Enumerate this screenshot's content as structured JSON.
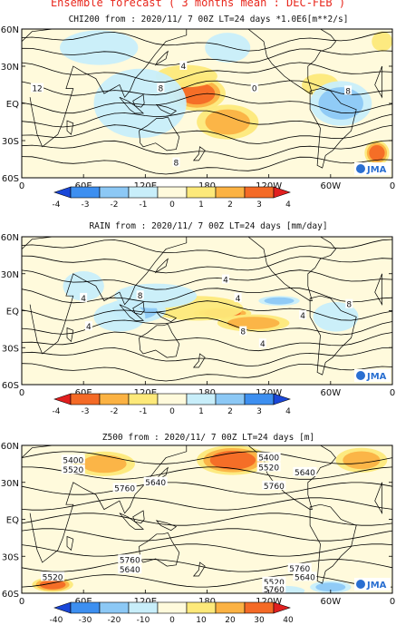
{
  "page_title": "Ensemble forecast ( 3 months mean : DEC-FEB )",
  "logo_text": "JMA",
  "chart_data": [
    {
      "type": "heatmap",
      "title": "CHI200  from : 2020/11/ 7 00Z LT=24 days  *1.0E6[m**2/s]",
      "lat_ticks": [
        "60N",
        "30N",
        "EQ",
        "30S",
        "60S"
      ],
      "lon_ticks": [
        "0",
        "60E",
        "120E",
        "180",
        "120W",
        "60W",
        "0"
      ],
      "colorbar": {
        "labels": [
          "-4",
          "-3",
          "-2",
          "-1",
          "0",
          "1",
          "2",
          "3",
          "4"
        ],
        "colors": [
          "#1a47d8",
          "#3d8ff0",
          "#8cc8f5",
          "#c8eefa",
          "#fffadc",
          "#fde97a",
          "#fbb243",
          "#f46a26",
          "#e11f1f"
        ]
      },
      "anomalies": [
        {
          "lon": 170,
          "lat": 8,
          "value": 3,
          "rx": 28,
          "ry": 14
        },
        {
          "lon": 200,
          "lat": -15,
          "value": 2,
          "rx": 30,
          "ry": 14
        },
        {
          "lon": 160,
          "lat": 22,
          "value": 1,
          "rx": 30,
          "ry": 9
        },
        {
          "lon": 290,
          "lat": 15,
          "value": 1,
          "rx": 18,
          "ry": 9
        },
        {
          "lon": 345,
          "lat": -40,
          "value": 3,
          "rx": 12,
          "ry": 10
        },
        {
          "lon": 350,
          "lat": 50,
          "value": 1,
          "rx": 10,
          "ry": 8
        },
        {
          "lon": 115,
          "lat": 0,
          "value": -1,
          "rx": 45,
          "ry": 28
        },
        {
          "lon": 75,
          "lat": 45,
          "value": -1,
          "rx": 38,
          "ry": 14
        },
        {
          "lon": 310,
          "lat": 0,
          "value": -2,
          "rx": 30,
          "ry": 18
        },
        {
          "lon": 200,
          "lat": 45,
          "value": -1,
          "rx": 22,
          "ry": 12
        }
      ],
      "contour_labels": [
        {
          "text": "12",
          "lon": 15,
          "lat": 12
        },
        {
          "text": "4",
          "lon": 157,
          "lat": 30
        },
        {
          "text": "8",
          "lon": 135,
          "lat": 12
        },
        {
          "text": "0",
          "lon": 226,
          "lat": 12
        },
        {
          "text": "8",
          "lon": 317,
          "lat": 10
        },
        {
          "text": "8",
          "lon": 150,
          "lat": -48
        }
      ]
    },
    {
      "type": "heatmap",
      "title": "RAIN   from : 2020/11/ 7 00Z LT=24 days   [mm/day]",
      "lat_ticks": [
        "60N",
        "30N",
        "EQ",
        "30S",
        "60S"
      ],
      "lon_ticks": [
        "0",
        "60E",
        "120E",
        "180",
        "120W",
        "60W",
        "0"
      ],
      "colorbar": {
        "labels": [
          "-4",
          "-3",
          "-2",
          "-1",
          "0",
          "1",
          "2",
          "3",
          "4"
        ],
        "colors": [
          "#e11f1f",
          "#f46a26",
          "#fbb243",
          "#fde97a",
          "#fffadc",
          "#c8eefa",
          "#8cc8f5",
          "#3d8ff0",
          "#1a47d8"
        ]
      },
      "anomalies": [
        {
          "lon": 195,
          "lat": -2,
          "value": -3,
          "rx": 28,
          "ry": 5
        },
        {
          "lon": 225,
          "lat": -10,
          "value": -2,
          "rx": 35,
          "ry": 7
        },
        {
          "lon": 170,
          "lat": 2,
          "value": -1,
          "rx": 45,
          "ry": 10
        },
        {
          "lon": 250,
          "lat": 8,
          "value": 2,
          "rx": 20,
          "ry": 4
        },
        {
          "lon": 110,
          "lat": 0,
          "value": 2,
          "rx": 30,
          "ry": 10
        },
        {
          "lon": 130,
          "lat": 12,
          "value": 1,
          "rx": 40,
          "ry": 10
        },
        {
          "lon": 95,
          "lat": -5,
          "value": 1,
          "rx": 25,
          "ry": 12
        },
        {
          "lon": 305,
          "lat": -5,
          "value": 1,
          "rx": 22,
          "ry": 12
        },
        {
          "lon": 60,
          "lat": 20,
          "value": 1,
          "rx": 20,
          "ry": 12
        }
      ],
      "contour_labels": [
        {
          "text": "4",
          "lon": 60,
          "lat": 10
        },
        {
          "text": "4",
          "lon": 65,
          "lat": -13
        },
        {
          "text": "4",
          "lon": 198,
          "lat": 25
        },
        {
          "text": "4",
          "lon": 210,
          "lat": 10
        },
        {
          "text": "4",
          "lon": 273,
          "lat": -4
        },
        {
          "text": "8",
          "lon": 215,
          "lat": -17
        },
        {
          "text": "4",
          "lon": 234,
          "lat": -27
        },
        {
          "text": "8",
          "lon": 115,
          "lat": 12
        },
        {
          "text": "8",
          "lon": 318,
          "lat": 5
        }
      ]
    },
    {
      "type": "heatmap",
      "title": "Z500   from : 2020/11/ 7 00Z LT=24 days   [m]",
      "lat_ticks": [
        "60N",
        "30N",
        "EQ",
        "30S",
        "60S"
      ],
      "lon_ticks": [
        "0",
        "60E",
        "120E",
        "180",
        "120W",
        "60W",
        "0"
      ],
      "colorbar": {
        "labels": [
          "-40",
          "-30",
          "-20",
          "-10",
          "0",
          "10",
          "20",
          "30",
          "40"
        ],
        "colors": [
          "#1a47d8",
          "#3d8ff0",
          "#8cc8f5",
          "#c8eefa",
          "#fffadc",
          "#fde97a",
          "#fbb243",
          "#f46a26",
          "#e11f1f"
        ]
      },
      "anomalies": [
        {
          "lon": 205,
          "lat": 48,
          "value": 3,
          "rx": 35,
          "ry": 12
        },
        {
          "lon": 80,
          "lat": 45,
          "value": 2,
          "rx": 30,
          "ry": 10
        },
        {
          "lon": 330,
          "lat": 48,
          "value": 2,
          "rx": 25,
          "ry": 10
        },
        {
          "lon": 30,
          "lat": -53,
          "value": 3,
          "rx": 20,
          "ry": 6
        },
        {
          "lon": 300,
          "lat": -55,
          "value": -2,
          "rx": 20,
          "ry": 5
        },
        {
          "lon": 255,
          "lat": -58,
          "value": -1,
          "rx": 20,
          "ry": 4
        }
      ],
      "contour_labels": [
        {
          "text": "5400",
          "lon": 50,
          "lat": 48
        },
        {
          "text": "5520",
          "lon": 50,
          "lat": 40
        },
        {
          "text": "5640",
          "lon": 130,
          "lat": 30
        },
        {
          "text": "5760",
          "lon": 100,
          "lat": 25
        },
        {
          "text": "5400",
          "lon": 240,
          "lat": 50
        },
        {
          "text": "5520",
          "lon": 240,
          "lat": 42
        },
        {
          "text": "5640",
          "lon": 275,
          "lat": 38
        },
        {
          "text": "5760",
          "lon": 245,
          "lat": 27
        },
        {
          "text": "5760",
          "lon": 105,
          "lat": -33
        },
        {
          "text": "5640",
          "lon": 105,
          "lat": -41
        },
        {
          "text": "5520",
          "lon": 30,
          "lat": -47
        },
        {
          "text": "5760",
          "lon": 270,
          "lat": -40
        },
        {
          "text": "5640",
          "lon": 275,
          "lat": -47
        },
        {
          "text": "5520",
          "lon": 245,
          "lat": -51
        },
        {
          "text": "5760",
          "lon": 245,
          "lat": -57
        }
      ]
    }
  ]
}
